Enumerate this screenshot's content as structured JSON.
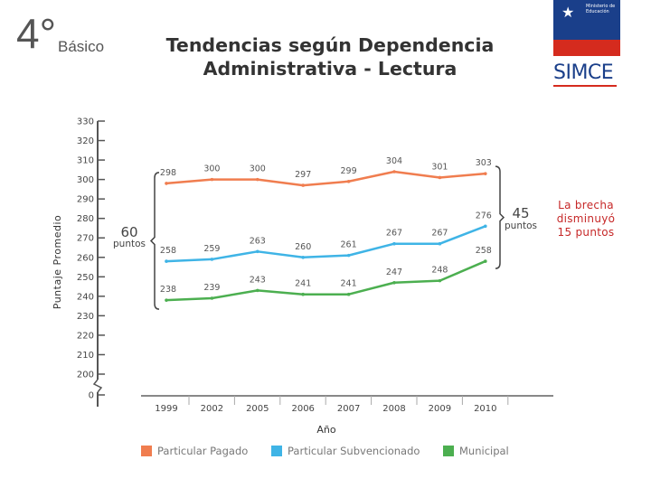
{
  "header": {
    "grade_number": "4°",
    "grade_label": "Básico",
    "title_line1": "Tendencias según Dependencia",
    "title_line2": "Administrativa - Lectura",
    "ministry_text": "Ministerio de Educación",
    "logo_text": "SIMCE"
  },
  "annotations": {
    "gap_1999_value": "60",
    "gap_1999_unit": "puntos",
    "gap_2010_value": "45",
    "gap_2010_unit": "puntos",
    "note": "La brecha disminuyó 15 puntos"
  },
  "colors": {
    "particular_pagado": "#f07d4f",
    "particular_subvencionado": "#3fb4e6",
    "municipal": "#4caf50",
    "axis": "#555555",
    "note": "#c62828"
  },
  "chart_data": {
    "type": "line",
    "title": "Tendencias según Dependencia Administrativa - Lectura",
    "xlabel": "Año",
    "ylabel": "Puntaje Promedio",
    "categories": [
      "1999",
      "2002",
      "2005",
      "2006",
      "2007",
      "2008",
      "2009",
      "2010"
    ],
    "y_ticks": [
      0,
      200,
      210,
      220,
      230,
      240,
      250,
      260,
      270,
      280,
      290,
      300,
      310,
      320,
      330
    ],
    "ylim": [
      200,
      330
    ],
    "axis_break": true,
    "series": [
      {
        "name": "Particular Pagado",
        "color": "#f07d4f",
        "values": [
          298,
          300,
          300,
          297,
          299,
          304,
          301,
          303
        ]
      },
      {
        "name": "Particular Subvencionado",
        "color": "#3fb4e6",
        "values": [
          258,
          259,
          263,
          260,
          261,
          267,
          267,
          276
        ]
      },
      {
        "name": "Municipal",
        "color": "#4caf50",
        "values": [
          238,
          239,
          243,
          241,
          241,
          247,
          248,
          258
        ]
      }
    ],
    "legend": [
      "Particular Pagado",
      "Particular Subvencionado",
      "Municipal"
    ],
    "legend_position": "bottom"
  }
}
